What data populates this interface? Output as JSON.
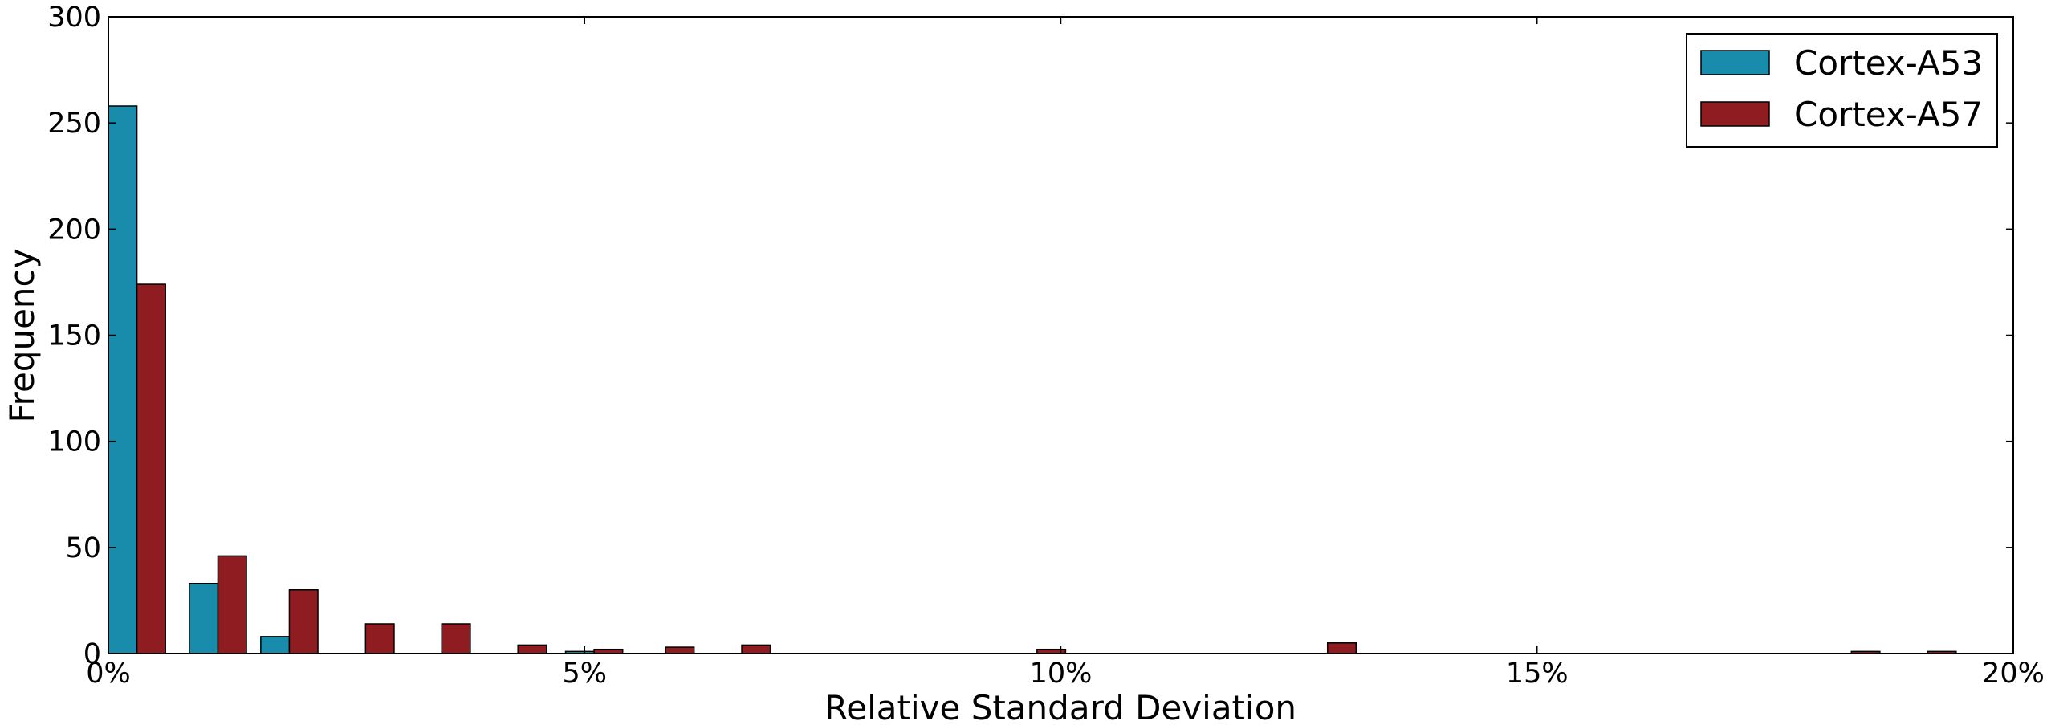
{
  "chart_data": {
    "type": "bar",
    "xlabel": "Relative Standard Deviation",
    "ylabel": "Frequency",
    "xlim": [
      0,
      20
    ],
    "ylim": [
      0,
      300
    ],
    "x_tick_values": [
      0,
      5,
      10,
      15,
      20
    ],
    "x_tick_labels": [
      "0%",
      "5%",
      "10%",
      "15%",
      "20%"
    ],
    "y_tick_values": [
      0,
      50,
      100,
      150,
      200,
      250,
      300
    ],
    "y_tick_labels": [
      "0",
      "50",
      "100",
      "150",
      "200",
      "250",
      "300"
    ],
    "grid": false,
    "legend_position": "top-right",
    "series": [
      {
        "name": "Cortex-A53",
        "color": "#1a8cab",
        "bars": [
          {
            "x": [
              0.0,
              0.3
            ],
            "value": 258
          },
          {
            "x": [
              0.85,
              1.15
            ],
            "value": 33
          },
          {
            "x": [
              1.6,
              1.9
            ],
            "value": 8
          },
          {
            "x": [
              4.8,
              5.1
            ],
            "value": 1
          }
        ]
      },
      {
        "name": "Cortex-A57",
        "color": "#8f1c20",
        "bars": [
          {
            "x": [
              0.3,
              0.6
            ],
            "value": 174
          },
          {
            "x": [
              1.15,
              1.45
            ],
            "value": 46
          },
          {
            "x": [
              1.9,
              2.2
            ],
            "value": 30
          },
          {
            "x": [
              2.7,
              3.0
            ],
            "value": 14
          },
          {
            "x": [
              3.5,
              3.8
            ],
            "value": 14
          },
          {
            "x": [
              4.3,
              4.6
            ],
            "value": 4
          },
          {
            "x": [
              5.1,
              5.4
            ],
            "value": 2
          },
          {
            "x": [
              5.85,
              6.15
            ],
            "value": 3
          },
          {
            "x": [
              6.65,
              6.95
            ],
            "value": 4
          },
          {
            "x": [
              9.75,
              10.05
            ],
            "value": 2
          },
          {
            "x": [
              12.8,
              13.1
            ],
            "value": 5
          },
          {
            "x": [
              18.3,
              18.6
            ],
            "value": 1
          },
          {
            "x": [
              19.1,
              19.4
            ],
            "value": 1
          }
        ]
      }
    ]
  }
}
